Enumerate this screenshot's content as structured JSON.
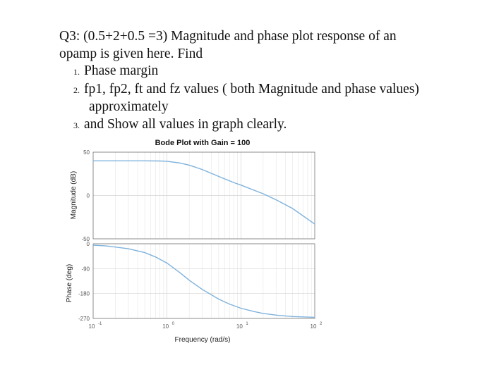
{
  "question": {
    "line1": "Q3: (0.5+2+0.5 =3) Magnitude and phase plot response of an",
    "line2": "opamp is given here. Find",
    "items": [
      {
        "num": "1.",
        "text": "Phase margin"
      },
      {
        "num": "2.",
        "text": "fp1, fp2, ft and fz values ( both Magnitude and phase values)"
      },
      {
        "num": "",
        "text": "approximately"
      },
      {
        "num": "3.",
        "text": "and Show all values in graph clearly."
      }
    ]
  },
  "chart_data": [
    {
      "type": "line",
      "title": "Bode Plot with Gain = 100",
      "ylabel": "Magnitude (dB)",
      "xscale": "log",
      "xlim": [
        0.1,
        100
      ],
      "ylim": [
        -50,
        50
      ],
      "yticks": [
        "50",
        "0",
        "-50"
      ],
      "grid": true,
      "series": [
        {
          "color": "#7fb2dc",
          "x": [
            0.1,
            0.2,
            0.3,
            0.5,
            0.8,
            1,
            1.5,
            2,
            3,
            5,
            8,
            10,
            20,
            30,
            50,
            100
          ],
          "values": [
            40,
            40,
            40,
            40,
            39.8,
            39.5,
            37.5,
            35,
            30,
            22,
            15,
            12,
            2,
            -5,
            -15,
            -33
          ]
        }
      ]
    },
    {
      "type": "line",
      "ylabel": "Phase (deg)",
      "xlabel": "Frequency (rad/s)",
      "xscale": "log",
      "xlim": [
        0.1,
        100
      ],
      "ylim": [
        -270,
        0
      ],
      "yticks": [
        "0",
        "-90",
        "-180",
        "-270"
      ],
      "xticks": [
        {
          "base": "10",
          "exp": "-1"
        },
        {
          "base": "10",
          "exp": "0"
        },
        {
          "base": "10",
          "exp": "1"
        },
        {
          "base": "10",
          "exp": "2"
        }
      ],
      "grid": true,
      "series": [
        {
          "color": "#7fb2dc",
          "x": [
            0.1,
            0.15,
            0.2,
            0.3,
            0.5,
            0.7,
            1,
            1.5,
            2,
            3,
            5,
            7,
            10,
            15,
            20,
            30,
            50,
            100
          ],
          "values": [
            -5,
            -8,
            -12,
            -18,
            -32,
            -48,
            -70,
            -105,
            -132,
            -165,
            -200,
            -218,
            -233,
            -245,
            -252,
            -258,
            -263,
            -266
          ]
        }
      ]
    }
  ]
}
